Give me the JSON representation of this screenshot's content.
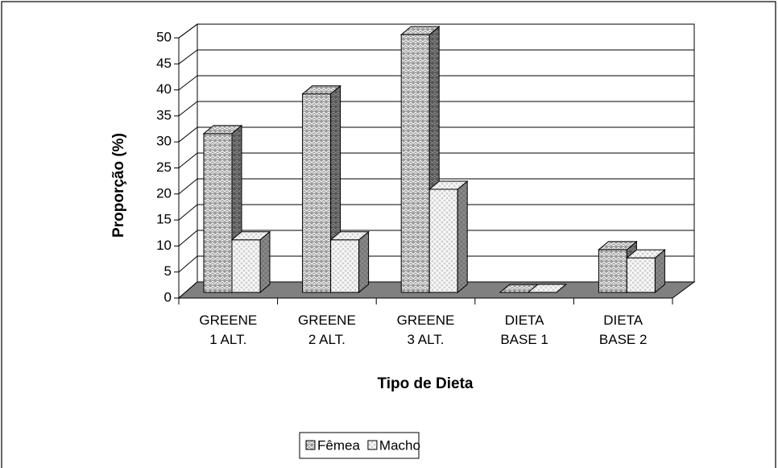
{
  "chart_data": {
    "type": "bar3d",
    "y_label": "Proporção (%)",
    "x_label": "Tipo de Dieta",
    "categories": [
      "GREENE\n1 ALT.",
      "GREENE\n2 ALT.",
      "GREENE\n3 ALT.",
      "DIETA\nBASE 1",
      "DIETA\nBASE 2"
    ],
    "series": [
      {
        "name": "Fêmea",
        "color": "#9a9a9a",
        "values": [
          30.8,
          38.5,
          50,
          0,
          8.3
        ]
      },
      {
        "name": "Macho",
        "color": "#d4d4d4",
        "values": [
          10.2,
          10.2,
          20,
          0,
          6.7
        ]
      }
    ],
    "ylim": [
      0,
      50
    ],
    "yticks": [
      0,
      5,
      10,
      15,
      20,
      25,
      30,
      35,
      40,
      45,
      50
    ],
    "grid": true,
    "legend": "bottom"
  }
}
